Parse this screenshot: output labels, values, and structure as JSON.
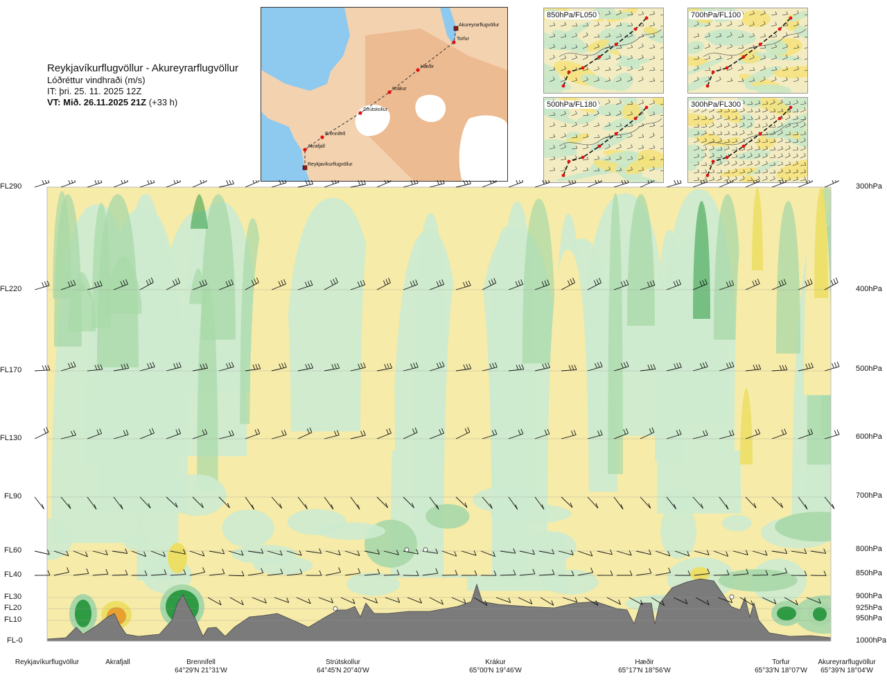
{
  "header": {
    "title": "Reykjavíkurflugvöllur - Akureyrarflugvöllur",
    "subtitle": "Lóðréttur vindhraði (m/s)",
    "it": "IT: þri. 25. 11. 2025 12Z",
    "vt_lead": "VT: Mið. 26.11.2025 21Z",
    "vt_offset": " (+33 h)"
  },
  "map": {
    "route_points": [
      {
        "name": "Akureyrarflugvöllur",
        "marker": "square"
      },
      {
        "name": "Torfur",
        "marker": "circle"
      },
      {
        "name": "Hæðir",
        "marker": "circle"
      },
      {
        "name": "Krákur",
        "marker": "circle"
      },
      {
        "name": "Strútskollur",
        "marker": "circle"
      },
      {
        "name": "Brennifell",
        "marker": "circle"
      },
      {
        "name": "Akrafjall",
        "marker": "circle"
      },
      {
        "name": "Reykjavíkurflugvöllur",
        "marker": "square"
      }
    ],
    "colors": {
      "sea": "#8ec9f0",
      "land": "#f3d2b0",
      "highland": "#e8a878",
      "glacier": "#ffffff",
      "route": "#333333",
      "point": "#e01010"
    }
  },
  "panels": [
    {
      "label": "850hPa/FL050"
    },
    {
      "label": "700hPa/FL100"
    },
    {
      "label": "500hPa/FL180"
    },
    {
      "label": "300hPa/FL300"
    }
  ],
  "levels_left": [
    "FL290",
    "FL220",
    "FL170",
    "FL130",
    "FL90",
    "FL60",
    "FL40",
    "FL30",
    "FL20",
    "FL10",
    "FL-0"
  ],
  "levels_right": [
    "300hPa",
    "400hPa",
    "500hPa",
    "600hPa",
    "700hPa",
    "800hPa",
    "850hPa",
    "900hPa",
    "925hPa",
    "950hPa",
    "1000hPa"
  ],
  "stations": [
    {
      "name": "Reykjavíkurflugvöllur",
      "coord": ""
    },
    {
      "name": "Akrafjall",
      "coord": ""
    },
    {
      "name": "Brennifell",
      "coord": "64°29'N 21°31'W"
    },
    {
      "name": "Strútskollur",
      "coord": "64°45'N 20°40'W"
    },
    {
      "name": "Krákur",
      "coord": "65°00'N 19°46'W"
    },
    {
      "name": "Hæðir",
      "coord": "65°17'N 18°56'W"
    },
    {
      "name": "Torfur",
      "coord": "65°33'N 18°07'W"
    },
    {
      "name": "Akureyrarflugvöllur",
      "coord": "65°39'N 18°04'W"
    }
  ],
  "chart_data": {
    "type": "heatmap",
    "title": "Reykjavíkurflugvöllur - Akureyrarflugvöllur",
    "variable": "Lóðréttur vindhraði (m/s)",
    "x": [
      "Reykjavíkurflugvöllur",
      "Akrafjall",
      "Brennifell",
      "Strútskollur",
      "Krákur",
      "Hæðir",
      "Torfur",
      "Akureyrarflugvöllur"
    ],
    "y_left": [
      "FL-0",
      "FL10",
      "FL20",
      "FL30",
      "FL40",
      "FL60",
      "FL90",
      "FL130",
      "FL170",
      "FL220",
      "FL290"
    ],
    "y_right": [
      "1000hPa",
      "950hPa",
      "925hPa",
      "900hPa",
      "850hPa",
      "800hPa",
      "700hPa",
      "600hPa",
      "500hPa",
      "400hPa",
      "300hPa"
    ],
    "colors": {
      "strong_up": "#2e9a44",
      "up": "#a8d8a8",
      "weak_up": "#cdebcf",
      "neutral": "#fffbe0",
      "weak_down": "#f6eba8",
      "down": "#eddf66",
      "strong_down": "#e8a030",
      "terrain": "#7b7b7b"
    },
    "grid": true
  }
}
